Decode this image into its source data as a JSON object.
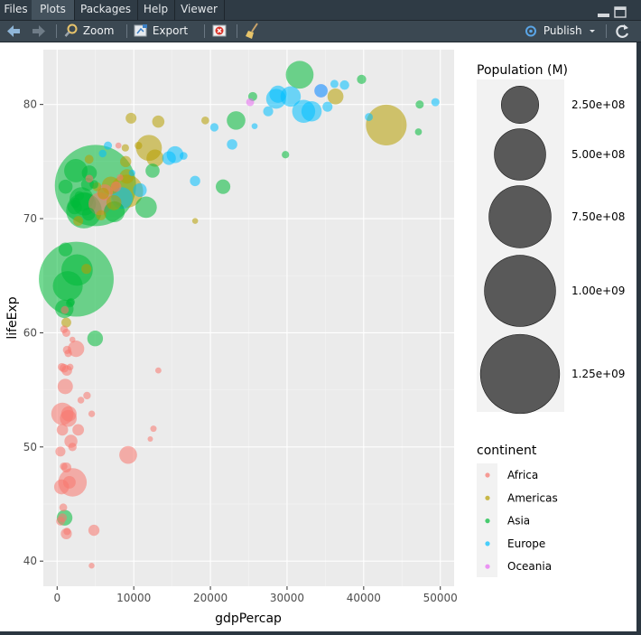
{
  "tabs": [
    {
      "label": "Files",
      "active": false
    },
    {
      "label": "Plots",
      "active": true
    },
    {
      "label": "Packages",
      "active": false
    },
    {
      "label": "Help",
      "active": false
    },
    {
      "label": "Viewer",
      "active": false
    }
  ],
  "toolbar": {
    "back_icon": "arrow-left-icon",
    "forward_icon": "arrow-right-icon",
    "zoom_label": "Zoom",
    "export_label": "Export",
    "publish_label": "Publish"
  },
  "colors": {
    "Africa": "#F8766D",
    "Americas": "#B79F00",
    "Asia": "#00BA38",
    "Europe": "#00BFFF",
    "Oceania": "#E76BF3",
    "panel": "#EBEBEB",
    "size_legend_fill": "#595959"
  },
  "chart_data": {
    "type": "scatter",
    "xlabel": "gdpPercap",
    "ylabel": "lifeExp",
    "xlim": [
      -1800,
      51800
    ],
    "ylim": [
      37.8,
      84.8
    ],
    "x_ticks": [
      0,
      10000,
      20000,
      30000,
      40000,
      50000
    ],
    "y_ticks": [
      40,
      50,
      60,
      70,
      80
    ],
    "size_legend": {
      "title": "Population (M)",
      "values": [
        250000000,
        500000000,
        750000000,
        1000000000,
        1250000000
      ],
      "labels": [
        "2.50e+08",
        "5.00e+08",
        "7.50e+08",
        "1.00e+09",
        "1.25e+09"
      ]
    },
    "color_legend": {
      "title": "continent",
      "entries": [
        "Africa",
        "Americas",
        "Asia",
        "Europe",
        "Oceania"
      ]
    },
    "points": [
      {
        "continent": "Asia",
        "x": 5000,
        "y": 72.9,
        "pop": 1318700000
      },
      {
        "continent": "Asia",
        "x": 2500,
        "y": 64.7,
        "pop": 1110400000
      },
      {
        "continent": "Americas",
        "x": 42950,
        "y": 78.2,
        "pop": 301100000
      },
      {
        "continent": "Asia",
        "x": 3500,
        "y": 70.7,
        "pop": 223500000
      },
      {
        "continent": "Americas",
        "x": 9070,
        "y": 72.4,
        "pop": 190000000
      },
      {
        "continent": "Asia",
        "x": 2600,
        "y": 65.5,
        "pop": 169300000
      },
      {
        "continent": "Asia",
        "x": 1390,
        "y": 64.1,
        "pop": 150400000
      },
      {
        "continent": "Africa",
        "x": 2010,
        "y": 46.9,
        "pop": 135000000
      },
      {
        "continent": "Asia",
        "x": 31650,
        "y": 82.6,
        "pop": 127500000
      },
      {
        "continent": "Americas",
        "x": 11980,
        "y": 76.2,
        "pop": 108700000
      },
      {
        "continent": "Asia",
        "x": 3190,
        "y": 71.7,
        "pop": 91100000
      },
      {
        "continent": "Asia",
        "x": 2440,
        "y": 74.2,
        "pop": 85300000
      },
      {
        "continent": "Europe",
        "x": 32170,
        "y": 79.4,
        "pop": 82400000
      },
      {
        "continent": "Africa",
        "x": 5580,
        "y": 71.3,
        "pop": 80300000
      },
      {
        "continent": "Africa",
        "x": 690,
        "y": 52.9,
        "pop": 76500000
      },
      {
        "continent": "Europe",
        "x": 8460,
        "y": 71.8,
        "pop": 71200000
      },
      {
        "continent": "Asia",
        "x": 11610,
        "y": 71.0,
        "pop": 69500000
      },
      {
        "continent": "Asia",
        "x": 7460,
        "y": 70.6,
        "pop": 65100000
      },
      {
        "continent": "Europe",
        "x": 30470,
        "y": 80.7,
        "pop": 61100000
      },
      {
        "continent": "Europe",
        "x": 33200,
        "y": 79.4,
        "pop": 60800000
      },
      {
        "continent": "Europe",
        "x": 28570,
        "y": 80.5,
        "pop": 58100000
      },
      {
        "continent": "Africa",
        "x": 9270,
        "y": 49.3,
        "pop": 44000000
      },
      {
        "continent": "Asia",
        "x": 944,
        "y": 62.1,
        "pop": 47800000
      },
      {
        "continent": "Asia",
        "x": 23350,
        "y": 78.6,
        "pop": 49000000
      },
      {
        "continent": "Europe",
        "x": 28820,
        "y": 80.9,
        "pop": 40400000
      },
      {
        "continent": "Americas",
        "x": 12780,
        "y": 75.3,
        "pop": 40300000
      },
      {
        "continent": "Americas",
        "x": 7000,
        "y": 72.9,
        "pop": 44200000
      },
      {
        "continent": "Africa",
        "x": 2470,
        "y": 58.6,
        "pop": 35600000
      },
      {
        "continent": "Asia",
        "x": 4960,
        "y": 59.5,
        "pop": 31900000
      },
      {
        "continent": "Americas",
        "x": 36320,
        "y": 80.7,
        "pop": 33400000
      },
      {
        "continent": "Africa",
        "x": 1460,
        "y": 52.5,
        "pop": 38100000
      },
      {
        "continent": "Africa",
        "x": 1060,
        "y": 55.3,
        "pop": 30000000
      },
      {
        "continent": "Africa",
        "x": 6220,
        "y": 72.3,
        "pop": 33800000
      },
      {
        "continent": "Asia",
        "x": 974,
        "y": 43.8,
        "pop": 31900000
      },
      {
        "continent": "Africa",
        "x": 1540,
        "y": 52.9,
        "pop": 30000000
      },
      {
        "continent": "Europe",
        "x": 34435,
        "y": 81.2,
        "pop": 20300000
      },
      {
        "continent": "Asia",
        "x": 21650,
        "y": 72.8,
        "pop": 26400000
      },
      {
        "continent": "Oceania",
        "x": 34430,
        "y": 81.2,
        "pop": 20400000
      },
      {
        "continent": "Asia",
        "x": 1100,
        "y": 72.8,
        "pop": 24000000
      },
      {
        "continent": "Africa",
        "x": 1600,
        "y": 46.9,
        "pop": 17700000
      },
      {
        "continent": "Africa",
        "x": 1800,
        "y": 50.5,
        "pop": 19500000
      },
      {
        "continent": "Asia",
        "x": 4200,
        "y": 74.0,
        "pop": 28900000
      },
      {
        "continent": "Asia",
        "x": 1090,
        "y": 67.3,
        "pop": 22600000
      },
      {
        "continent": "Americas",
        "x": 9100,
        "y": 73.7,
        "pop": 26000000
      },
      {
        "continent": "Asia",
        "x": 4100,
        "y": 70.4,
        "pop": 19300000
      },
      {
        "continent": "Europe",
        "x": 10800,
        "y": 72.5,
        "pop": 22300000
      },
      {
        "continent": "Africa",
        "x": 1270,
        "y": 56.7,
        "pop": 10300000
      },
      {
        "continent": "Africa",
        "x": 690,
        "y": 51.5,
        "pop": 13400000
      },
      {
        "continent": "Africa",
        "x": 4800,
        "y": 42.7,
        "pop": 12300000
      },
      {
        "continent": "Africa",
        "x": 580,
        "y": 46.5,
        "pop": 28000000
      },
      {
        "continent": "Africa",
        "x": 430,
        "y": 49.6,
        "pop": 9000000
      },
      {
        "continent": "Africa",
        "x": 1200,
        "y": 42.4,
        "pop": 12100000
      },
      {
        "continent": "Africa",
        "x": 2750,
        "y": 51.5,
        "pop": 13900000
      },
      {
        "continent": "Europe",
        "x": 15390,
        "y": 75.6,
        "pop": 38500000
      },
      {
        "continent": "Europe",
        "x": 14600,
        "y": 75.3,
        "pop": 22300000
      },
      {
        "continent": "Europe",
        "x": 22830,
        "y": 76.5,
        "pop": 10200000
      },
      {
        "continent": "Europe",
        "x": 27540,
        "y": 79.4,
        "pop": 9000000
      },
      {
        "continent": "Europe",
        "x": 35280,
        "y": 79.8,
        "pop": 8900000
      },
      {
        "continent": "Europe",
        "x": 37500,
        "y": 81.7,
        "pop": 7500000
      },
      {
        "continent": "Europe",
        "x": 18000,
        "y": 73.3,
        "pop": 9900000
      },
      {
        "continent": "Americas",
        "x": 13200,
        "y": 78.5,
        "pop": 16300000
      },
      {
        "continent": "Americas",
        "x": 9645,
        "y": 78.8,
        "pop": 11400000
      },
      {
        "continent": "Americas",
        "x": 8948,
        "y": 75.0,
        "pop": 12500000
      },
      {
        "continent": "Americas",
        "x": 2750,
        "y": 69.8,
        "pop": 8500000
      },
      {
        "continent": "Americas",
        "x": 1200,
        "y": 60.9,
        "pop": 8500000
      },
      {
        "continent": "Americas",
        "x": 6025,
        "y": 72.2,
        "pop": 13800000
      },
      {
        "continent": "Americas",
        "x": 7408,
        "y": 71.4,
        "pop": 28700000
      },
      {
        "continent": "Americas",
        "x": 5728,
        "y": 70.3,
        "pop": 9100000
      },
      {
        "continent": "Americas",
        "x": 3820,
        "y": 65.6,
        "pop": 9100000
      },
      {
        "continent": "Americas",
        "x": 10611,
        "y": 76.4,
        "pop": 3400000
      },
      {
        "continent": "Americas",
        "x": 18009,
        "y": 69.8,
        "pop": 1100000
      },
      {
        "continent": "Americas",
        "x": 19328,
        "y": 78.6,
        "pop": 3900000
      },
      {
        "continent": "Americas",
        "x": 8900,
        "y": 76.2,
        "pop": 3100000
      },
      {
        "continent": "Americas",
        "x": 4173,
        "y": 75.2,
        "pop": 6000000
      },
      {
        "continent": "Americas",
        "x": 5186,
        "y": 72.8,
        "pop": 6400000
      },
      {
        "continent": "Asia",
        "x": 39725,
        "y": 82.2,
        "pop": 6980000
      },
      {
        "continent": "Asia",
        "x": 47307,
        "y": 80.0,
        "pop": 4550000
      },
      {
        "continent": "Asia",
        "x": 47143,
        "y": 77.6,
        "pop": 2500000
      },
      {
        "continent": "Asia",
        "x": 12452,
        "y": 74.2,
        "pop": 24000000
      },
      {
        "continent": "Asia",
        "x": 25523,
        "y": 80.7,
        "pop": 6400000
      },
      {
        "continent": "Asia",
        "x": 29796,
        "y": 75.6,
        "pop": 3200000
      },
      {
        "continent": "Asia",
        "x": 3540,
        "y": 71.3,
        "pop": 85300000
      },
      {
        "continent": "Asia",
        "x": 2280,
        "y": 71.0,
        "pop": 24800000
      },
      {
        "continent": "Asia",
        "x": 3970,
        "y": 73.0,
        "pop": 19000000
      },
      {
        "continent": "Europe",
        "x": 49357,
        "y": 80.2,
        "pop": 4600000
      },
      {
        "continent": "Europe",
        "x": 40676,
        "y": 78.9,
        "pop": 4100000
      },
      {
        "continent": "Europe",
        "x": 36181,
        "y": 81.8,
        "pop": 4500000
      },
      {
        "continent": "Europe",
        "x": 25768,
        "y": 78.1,
        "pop": 1300000
      },
      {
        "continent": "Europe",
        "x": 20510,
        "y": 78.0,
        "pop": 5000000
      },
      {
        "continent": "Europe",
        "x": 16500,
        "y": 75.5,
        "pop": 3900000
      },
      {
        "continent": "Europe",
        "x": 9780,
        "y": 74.0,
        "pop": 1900000
      },
      {
        "continent": "Europe",
        "x": 6630,
        "y": 76.4,
        "pop": 4500000
      },
      {
        "continent": "Europe",
        "x": 5940,
        "y": 75.7,
        "pop": 3600000
      },
      {
        "continent": "Oceania",
        "x": 25185,
        "y": 80.2,
        "pop": 4100000
      },
      {
        "continent": "Africa",
        "x": 12570,
        "y": 51.6,
        "pop": 1600000
      },
      {
        "continent": "Africa",
        "x": 13206,
        "y": 56.7,
        "pop": 1400000
      },
      {
        "continent": "Africa",
        "x": 12154,
        "y": 50.7,
        "pop": 700000
      },
      {
        "continent": "Africa",
        "x": 4513,
        "y": 52.9,
        "pop": 2000000
      },
      {
        "continent": "Africa",
        "x": 3900,
        "y": 54.5,
        "pop": 3300000
      },
      {
        "continent": "Africa",
        "x": 4500,
        "y": 39.6,
        "pop": 1100000
      },
      {
        "continent": "Africa",
        "x": 2000,
        "y": 59.4,
        "pop": 1200000
      },
      {
        "continent": "Africa",
        "x": 1700,
        "y": 57.0,
        "pop": 2000000
      },
      {
        "continent": "Africa",
        "x": 1450,
        "y": 58.2,
        "pop": 3500000
      },
      {
        "continent": "Africa",
        "x": 620,
        "y": 57.0,
        "pop": 4500000
      },
      {
        "continent": "Africa",
        "x": 900,
        "y": 56.9,
        "pop": 6000000
      },
      {
        "continent": "Africa",
        "x": 1300,
        "y": 58.5,
        "pop": 5000000
      },
      {
        "continent": "Africa",
        "x": 850,
        "y": 48.3,
        "pop": 3500000
      },
      {
        "continent": "Africa",
        "x": 1200,
        "y": 48.2,
        "pop": 9000000
      },
      {
        "continent": "Africa",
        "x": 700,
        "y": 43.8,
        "pop": 6000000
      },
      {
        "continent": "Africa",
        "x": 450,
        "y": 43.5,
        "pop": 6000000
      },
      {
        "continent": "Africa",
        "x": 800,
        "y": 44.7,
        "pop": 4000000
      },
      {
        "continent": "Africa",
        "x": 1300,
        "y": 42.6,
        "pop": 3000000
      },
      {
        "continent": "Africa",
        "x": 1200,
        "y": 60.0,
        "pop": 4500000
      },
      {
        "continent": "Africa",
        "x": 900,
        "y": 60.3,
        "pop": 3500000
      },
      {
        "continent": "Africa",
        "x": 3100,
        "y": 54.1,
        "pop": 2200000
      },
      {
        "continent": "Africa",
        "x": 1000,
        "y": 62.0,
        "pop": 4000000
      },
      {
        "continent": "Africa",
        "x": 2000,
        "y": 50.0,
        "pop": 5000000
      },
      {
        "continent": "Africa",
        "x": 8200,
        "y": 73.6,
        "pop": 2000000
      },
      {
        "continent": "Africa",
        "x": 7700,
        "y": 72.8,
        "pop": 10000000
      },
      {
        "continent": "Africa",
        "x": 8000,
        "y": 76.4,
        "pop": 1300000
      },
      {
        "continent": "Africa",
        "x": 4200,
        "y": 73.5,
        "pop": 4000000
      },
      {
        "continent": "Asia",
        "x": 2900,
        "y": 72.0,
        "pop": 7000000
      },
      {
        "continent": "Asia",
        "x": 4800,
        "y": 73.0,
        "pop": 6000000
      },
      {
        "continent": "Asia",
        "x": 1700,
        "y": 62.6,
        "pop": 5000000
      },
      {
        "continent": "Asia",
        "x": 2400,
        "y": 71.4,
        "pop": 8000000
      },
      {
        "continent": "Asia",
        "x": 1800,
        "y": 62.7,
        "pop": 4000000
      }
    ]
  }
}
